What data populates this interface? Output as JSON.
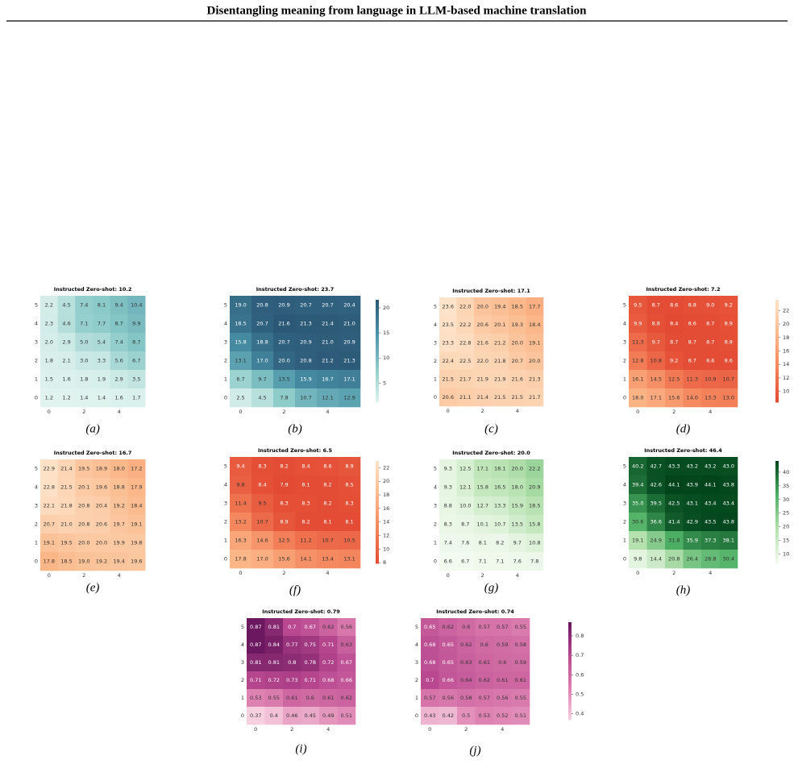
{
  "header": {
    "title": "Disentangling meaning from language in LLM-based machine translation"
  },
  "chart_data": [
    {
      "type": "heatmap",
      "title": "Instructed Zero-shot: 10.2",
      "caption": "(a)",
      "x": [
        0,
        null,
        2,
        null,
        4,
        null
      ],
      "y": [
        5,
        4,
        3,
        2,
        1,
        0
      ],
      "clim": [
        1.2,
        21.4
      ],
      "colors": [
        "#e0f3ef",
        "#8ccbc9",
        "#4a93a8",
        "#2b5876"
      ],
      "values": [
        [
          2.2,
          4.5,
          7.4,
          8.1,
          9.4,
          10.4
        ],
        [
          2.3,
          4.6,
          7.1,
          7.7,
          8.7,
          9.9
        ],
        [
          2.0,
          2.9,
          5.0,
          5.4,
          7.4,
          8.7
        ],
        [
          1.8,
          2.1,
          3.0,
          3.3,
          5.6,
          6.7
        ],
        [
          1.5,
          1.6,
          1.8,
          1.9,
          2.9,
          3.5
        ],
        [
          1.2,
          1.2,
          1.4,
          1.4,
          1.6,
          1.7
        ]
      ],
      "value_labels": [
        [
          "2.2",
          "4.5",
          "7.4",
          "8.1",
          "9.4",
          "10.4"
        ],
        [
          "2.3",
          "4.6",
          "7.1",
          "7.7",
          "8.7",
          "9.9"
        ],
        [
          "2.0",
          "2.9",
          "5.0",
          "5.4",
          "7.4",
          "8.7"
        ],
        [
          "1.8",
          "2.1",
          "3.0",
          "3.3",
          "5.6",
          "6.7"
        ],
        [
          "1.5",
          "1.6",
          "1.8",
          "1.9",
          "2.9",
          "3.5"
        ],
        [
          "1.2",
          "1.2",
          "1.4",
          "1.4",
          "1.6",
          "1.7"
        ]
      ]
    },
    {
      "type": "heatmap",
      "title": "Instructed Zero-shot: 23.7",
      "caption": "(b)",
      "x": [
        0,
        null,
        2,
        null,
        4,
        null
      ],
      "y": [
        5,
        4,
        3,
        2,
        1,
        0
      ],
      "clim": [
        1.2,
        21.6
      ],
      "colors": [
        "#e0f3ef",
        "#8ccbc9",
        "#4a93a8",
        "#2b5876"
      ],
      "colorbar_ticks": [
        5,
        10,
        15,
        20
      ],
      "values": [
        [
          19.0,
          20.8,
          20.9,
          20.7,
          20.7,
          20.4
        ],
        [
          18.5,
          20.7,
          21.6,
          21.3,
          21.4,
          21.0
        ],
        [
          15.8,
          18.8,
          20.7,
          20.9,
          21.0,
          20.9
        ],
        [
          13.1,
          17.0,
          20.0,
          20.8,
          21.2,
          21.3
        ],
        [
          6.7,
          9.7,
          13.5,
          15.9,
          16.7,
          17.1
        ],
        [
          2.5,
          4.5,
          7.8,
          10.7,
          12.1,
          12.9
        ]
      ],
      "value_labels": [
        [
          "19.0",
          "20.8",
          "20.9",
          "20.7",
          "20.7",
          "20.4"
        ],
        [
          "18.5",
          "20.7",
          "21.6",
          "21.3",
          "21.4",
          "21.0"
        ],
        [
          "15.8",
          "18.8",
          "20.7",
          "20.9",
          "21.0",
          "20.9"
        ],
        [
          "13.1",
          "17.0",
          "20.0",
          "20.8",
          "21.2",
          "21.3"
        ],
        [
          "6.7",
          "9.7",
          "13.5",
          "15.9",
          "16.7",
          "17.1"
        ],
        [
          "2.5",
          "4.5",
          "7.8",
          "10.7",
          "12.1",
          "12.9"
        ]
      ]
    },
    {
      "type": "heatmap",
      "title": "Instructed Zero-shot: 17.1",
      "caption": "(c)",
      "x": [
        0,
        null,
        2,
        null,
        4,
        null
      ],
      "y": [
        5,
        4,
        3,
        2,
        1,
        0
      ],
      "clim": [
        8.4,
        23.6
      ],
      "colors": [
        "#e34a33",
        "#f4845b",
        "#fbb88a",
        "#fde3c9"
      ],
      "values": [
        [
          23.6,
          22.0,
          20.0,
          19.4,
          18.5,
          17.7
        ],
        [
          23.5,
          22.2,
          20.6,
          20.1,
          19.3,
          18.4
        ],
        [
          23.3,
          22.8,
          21.6,
          21.2,
          20.0,
          19.1
        ],
        [
          22.4,
          22.5,
          22.0,
          21.8,
          20.7,
          20.0
        ],
        [
          21.5,
          21.7,
          21.9,
          21.9,
          21.6,
          21.3
        ],
        [
          20.6,
          21.1,
          21.4,
          21.5,
          21.5,
          21.7
        ]
      ],
      "value_labels": [
        [
          "23.6",
          "22.0",
          "20.0",
          "19.4",
          "18.5",
          "17.7"
        ],
        [
          "23.5",
          "22.2",
          "20.6",
          "20.1",
          "19.3",
          "18.4"
        ],
        [
          "23.3",
          "22.8",
          "21.6",
          "21.2",
          "20.0",
          "19.1"
        ],
        [
          "22.4",
          "22.5",
          "22.0",
          "21.8",
          "20.7",
          "20.0"
        ],
        [
          "21.5",
          "21.7",
          "21.9",
          "21.9",
          "21.6",
          "21.3"
        ],
        [
          "20.6",
          "21.1",
          "21.4",
          "21.5",
          "21.5",
          "21.7"
        ]
      ]
    },
    {
      "type": "heatmap",
      "title": "Instructed Zero-shot: 7.2",
      "caption": "(d)",
      "x": [
        0,
        null,
        2,
        null,
        4,
        null
      ],
      "y": [
        5,
        4,
        3,
        2,
        1,
        0
      ],
      "clim": [
        8.4,
        23.6
      ],
      "colors": [
        "#e34a33",
        "#f4845b",
        "#fbb88a",
        "#fde3c9"
      ],
      "colorbar_ticks": [
        10,
        12,
        14,
        16,
        18,
        20,
        22
      ],
      "values": [
        [
          9.5,
          8.7,
          8.6,
          8.8,
          9.0,
          9.2
        ],
        [
          9.9,
          8.8,
          8.4,
          8.6,
          8.7,
          8.9
        ],
        [
          11.3,
          9.7,
          8.7,
          8.7,
          8.7,
          8.8
        ],
        [
          12.8,
          10.8,
          9.2,
          8.7,
          8.6,
          8.6
        ],
        [
          16.1,
          14.5,
          12.5,
          11.3,
          10.9,
          10.7
        ],
        [
          18.0,
          17.1,
          15.6,
          14.0,
          13.3,
          13.0
        ]
      ],
      "value_labels": [
        [
          "9.5",
          "8.7",
          "8.6",
          "8.8",
          "9.0",
          "9.2"
        ],
        [
          "9.9",
          "8.8",
          "8.4",
          "8.6",
          "8.7",
          "8.9"
        ],
        [
          "11.3",
          "9.7",
          "8.7",
          "8.7",
          "8.7",
          "8.8"
        ],
        [
          "12.8",
          "10.8",
          "9.2",
          "8.7",
          "8.6",
          "8.6"
        ],
        [
          "16.1",
          "14.5",
          "12.5",
          "11.3",
          "10.9",
          "10.7"
        ],
        [
          "18.0",
          "17.1",
          "15.6",
          "14.0",
          "13.3",
          "13.0"
        ]
      ]
    },
    {
      "type": "heatmap",
      "title": "Instructed Zero-shot: 16.7",
      "caption": "(e)",
      "x": [
        0,
        null,
        2,
        null,
        4,
        null
      ],
      "y": [
        5,
        4,
        3,
        2,
        1,
        0
      ],
      "clim": [
        7.9,
        23.0
      ],
      "colors": [
        "#e34a33",
        "#f4845b",
        "#fbb88a",
        "#fde3c9"
      ],
      "values": [
        [
          22.9,
          21.4,
          19.5,
          18.9,
          18.0,
          17.2
        ],
        [
          22.8,
          21.5,
          20.1,
          19.6,
          18.8,
          17.9
        ],
        [
          22.1,
          21.8,
          20.8,
          20.4,
          19.2,
          18.4
        ],
        [
          20.7,
          21.0,
          20.8,
          20.6,
          19.7,
          19.1
        ],
        [
          19.1,
          19.5,
          20.0,
          20.0,
          19.9,
          19.8
        ],
        [
          17.8,
          18.5,
          19.0,
          19.2,
          19.4,
          19.6
        ]
      ],
      "value_labels": [
        [
          "22.9",
          "21.4",
          "19.5",
          "18.9",
          "18.0",
          "17.2"
        ],
        [
          "22.8",
          "21.5",
          "20.1",
          "19.6",
          "18.8",
          "17.9"
        ],
        [
          "22.1",
          "21.8",
          "20.8",
          "20.4",
          "19.2",
          "18.4"
        ],
        [
          "20.7",
          "21.0",
          "20.8",
          "20.6",
          "19.7",
          "19.1"
        ],
        [
          "19.1",
          "19.5",
          "20.0",
          "20.0",
          "19.9",
          "19.8"
        ],
        [
          "17.8",
          "18.5",
          "19.0",
          "19.2",
          "19.4",
          "19.6"
        ]
      ]
    },
    {
      "type": "heatmap",
      "title": "Instructed Zero-shot: 6.5",
      "caption": "(f)",
      "x": [
        0,
        null,
        2,
        null,
        4,
        null
      ],
      "y": [
        5,
        4,
        3,
        2,
        1,
        0
      ],
      "clim": [
        7.9,
        23.0
      ],
      "colors": [
        "#e34a33",
        "#f4845b",
        "#fbb88a",
        "#fde3c9"
      ],
      "colorbar_ticks": [
        8,
        10,
        12,
        14,
        16,
        18,
        20,
        22
      ],
      "values": [
        [
          9.4,
          8.3,
          8.2,
          8.4,
          8.6,
          8.9
        ],
        [
          9.8,
          8.4,
          7.9,
          8.1,
          8.2,
          8.5
        ],
        [
          11.4,
          9.5,
          8.3,
          8.3,
          8.2,
          8.3
        ],
        [
          13.2,
          10.7,
          8.9,
          8.2,
          8.1,
          8.1
        ],
        [
          16.3,
          14.6,
          12.5,
          11.2,
          10.7,
          10.5
        ],
        [
          17.8,
          17.0,
          15.6,
          14.1,
          13.4,
          13.1
        ]
      ],
      "value_labels": [
        [
          "9.4",
          "8.3",
          "8.2",
          "8.4",
          "8.6",
          "8.9"
        ],
        [
          "9.8",
          "8.4",
          "7.9",
          "8.1",
          "8.2",
          "8.5"
        ],
        [
          "11.4",
          "9.5",
          "8.3",
          "8.3",
          "8.2",
          "8.3"
        ],
        [
          "13.2",
          "10.7",
          "8.9",
          "8.2",
          "8.1",
          "8.1"
        ],
        [
          "16.3",
          "14.6",
          "12.5",
          "11.2",
          "10.7",
          "10.5"
        ],
        [
          "17.8",
          "17.0",
          "15.6",
          "14.1",
          "13.4",
          "13.1"
        ]
      ]
    },
    {
      "type": "heatmap",
      "title": "Instructed Zero-shot: 20.0",
      "caption": "(g)",
      "x": [
        0,
        null,
        2,
        null,
        4,
        null
      ],
      "y": [
        5,
        4,
        3,
        2,
        1,
        0
      ],
      "clim": [
        6.6,
        44.1
      ],
      "colors": [
        "#f3faf0",
        "#b5e1ae",
        "#4db064",
        "#00441b"
      ],
      "values": [
        [
          9.3,
          12.5,
          17.1,
          18.1,
          20.0,
          22.2
        ],
        [
          9.3,
          12.1,
          15.8,
          16.5,
          18.0,
          20.9
        ],
        [
          8.8,
          10.0,
          12.7,
          13.3,
          15.9,
          18.5
        ],
        [
          8.3,
          8.7,
          10.1,
          10.7,
          13.5,
          15.8
        ],
        [
          7.4,
          7.6,
          8.1,
          8.2,
          9.7,
          10.8
        ],
        [
          6.6,
          6.7,
          7.1,
          7.1,
          7.6,
          7.8
        ]
      ],
      "value_labels": [
        [
          "9.3",
          "12.5",
          "17.1",
          "18.1",
          "20.0",
          "22.2"
        ],
        [
          "9.3",
          "12.1",
          "15.8",
          "16.5",
          "18.0",
          "20.9"
        ],
        [
          "8.8",
          "10.0",
          "12.7",
          "13.3",
          "15.9",
          "18.5"
        ],
        [
          "8.3",
          "8.7",
          "10.1",
          "10.7",
          "13.5",
          "15.8"
        ],
        [
          "7.4",
          "7.6",
          "8.1",
          "8.2",
          "9.7",
          "10.8"
        ],
        [
          "6.6",
          "6.7",
          "7.1",
          "7.1",
          "7.6",
          "7.8"
        ]
      ]
    },
    {
      "type": "heatmap",
      "title": "Instructed Zero-shot: 46.4",
      "caption": "(h)",
      "x": [
        0,
        null,
        2,
        null,
        4,
        null
      ],
      "y": [
        5,
        4,
        3,
        2,
        1,
        0
      ],
      "clim": [
        6.6,
        44.1
      ],
      "colors": [
        "#f3faf0",
        "#b5e1ae",
        "#4db064",
        "#00441b"
      ],
      "colorbar_ticks": [
        10,
        15,
        20,
        25,
        30,
        35,
        40
      ],
      "values": [
        [
          40.2,
          42.7,
          43.3,
          43.2,
          43.2,
          43.0
        ],
        [
          39.4,
          42.6,
          44.1,
          43.9,
          44.1,
          43.8
        ],
        [
          35.0,
          39.5,
          42.5,
          43.1,
          43.4,
          43.4
        ],
        [
          30.6,
          36.6,
          41.4,
          42.9,
          43.5,
          43.8
        ],
        [
          19.1,
          24.9,
          31.8,
          35.9,
          37.3,
          38.1
        ],
        [
          9.8,
          14.4,
          20.8,
          26.4,
          28.8,
          30.4
        ]
      ],
      "value_labels": [
        [
          "40.2",
          "42.7",
          "43.3",
          "43.2",
          "43.2",
          "43.0"
        ],
        [
          "39.4",
          "42.6",
          "44.1",
          "43.9",
          "44.1",
          "43.8"
        ],
        [
          "35.0",
          "39.5",
          "42.5",
          "43.1",
          "43.4",
          "43.4"
        ],
        [
          "30.6",
          "36.6",
          "41.4",
          "42.9",
          "43.5",
          "43.8"
        ],
        [
          "19.1",
          "24.9",
          "31.8",
          "35.9",
          "37.3",
          "38.1"
        ],
        [
          "9.8",
          "14.4",
          "20.8",
          "26.4",
          "28.8",
          "30.4"
        ]
      ]
    },
    {
      "type": "heatmap",
      "title": "Instructed Zero-shot: 0.79",
      "caption": "(i)",
      "x": [
        0,
        null,
        2,
        null,
        4,
        null
      ],
      "y": [
        5,
        4,
        3,
        2,
        1,
        0
      ],
      "clim": [
        0.37,
        0.87
      ],
      "colors": [
        "#f7d0e0",
        "#dd7fb0",
        "#b8478f",
        "#6b1860"
      ],
      "values": [
        [
          0.87,
          0.81,
          0.7,
          0.67,
          0.62,
          0.56
        ],
        [
          0.87,
          0.84,
          0.77,
          0.75,
          0.71,
          0.63
        ],
        [
          0.81,
          0.81,
          0.8,
          0.78,
          0.72,
          0.67
        ],
        [
          0.71,
          0.72,
          0.73,
          0.71,
          0.68,
          0.66
        ],
        [
          0.53,
          0.55,
          0.61,
          0.6,
          0.61,
          0.62
        ],
        [
          0.37,
          0.4,
          0.46,
          0.45,
          0.49,
          0.51
        ]
      ]
    },
    {
      "type": "heatmap",
      "title": "Instructed Zero-shot: 0.74",
      "caption": "(j)",
      "x": [
        0,
        null,
        2,
        null,
        4,
        null
      ],
      "y": [
        5,
        4,
        3,
        2,
        1,
        0
      ],
      "clim": [
        0.37,
        0.87
      ],
      "colors": [
        "#f7d0e0",
        "#dd7fb0",
        "#b8478f",
        "#6b1860"
      ],
      "colorbar_ticks": [
        0.4,
        0.5,
        0.6,
        0.7,
        0.8
      ],
      "values": [
        [
          0.65,
          0.62,
          0.6,
          0.57,
          0.57,
          0.55
        ],
        [
          0.68,
          0.65,
          0.62,
          0.6,
          0.59,
          0.58
        ],
        [
          0.68,
          0.65,
          0.63,
          0.61,
          0.6,
          0.59
        ],
        [
          0.7,
          0.66,
          0.64,
          0.62,
          0.61,
          0.61
        ],
        [
          0.57,
          0.56,
          0.58,
          0.57,
          0.56,
          0.55
        ],
        [
          0.43,
          0.42,
          0.5,
          0.53,
          0.52,
          0.51
        ]
      ]
    }
  ]
}
